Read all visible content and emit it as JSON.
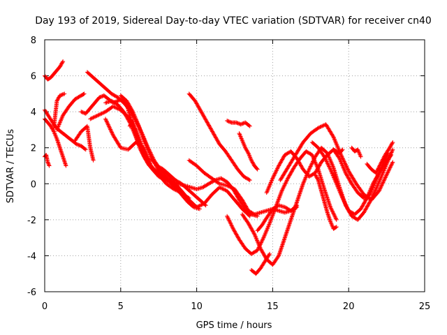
{
  "chart_data": {
    "type": "scatter",
    "title": "Day 193 of 2019, Sidereal Day-to-day VTEC variation (SDTVAR) for receiver cn40",
    "xlabel": "GPS time / hours",
    "ylabel": "SDTVAR / TECUs",
    "xlim": [
      0,
      25
    ],
    "ylim": [
      -6,
      8
    ],
    "xticks": [
      0,
      5,
      10,
      15,
      20,
      25
    ],
    "yticks": [
      -6,
      -4,
      -2,
      0,
      2,
      4,
      6,
      8
    ],
    "grid": true,
    "marker": "+",
    "color": "#ff0000",
    "series": [
      {
        "x": [
          0.0,
          0.2,
          0.4,
          0.6,
          0.8,
          1.0,
          1.2
        ],
        "y": [
          6.0,
          5.8,
          5.9,
          6.1,
          6.3,
          6.5,
          6.8
        ]
      },
      {
        "x": [
          0.0,
          0.3,
          0.6,
          0.9,
          1.2,
          1.5,
          1.8,
          2.1,
          2.4,
          2.7
        ],
        "y": [
          4.1,
          3.7,
          3.3,
          3.0,
          2.8,
          2.6,
          2.4,
          2.2,
          2.1,
          1.9
        ]
      },
      {
        "x": [
          0.0,
          0.2,
          0.4,
          0.6,
          0.8,
          1.0,
          1.2,
          1.4
        ],
        "y": [
          3.6,
          3.4,
          3.2,
          2.9,
          2.5,
          2.0,
          1.5,
          1.0
        ]
      },
      {
        "x": [
          0.0,
          0.1,
          0.2,
          0.3
        ],
        "y": [
          1.5,
          1.6,
          1.2,
          1.0
        ]
      },
      {
        "x": [
          0.8,
          1.2,
          1.6,
          2.0,
          2.4,
          2.6
        ],
        "y": [
          3.0,
          3.8,
          4.3,
          4.7,
          4.9,
          5.0
        ]
      },
      {
        "x": [
          0.6,
          0.8,
          1.0,
          1.3
        ],
        "y": [
          3.1,
          4.6,
          4.9,
          5.0
        ]
      },
      {
        "x": [
          2.0,
          2.4,
          2.8,
          3.0,
          3.2
        ],
        "y": [
          2.4,
          2.9,
          3.2,
          2.0,
          1.3
        ]
      },
      {
        "x": [
          2.4,
          2.7,
          3.0,
          3.3,
          3.6,
          3.9,
          4.2,
          4.5,
          4.8,
          5.1,
          5.4,
          5.7,
          6.0,
          6.3,
          6.6,
          6.9,
          7.2,
          7.5,
          7.8,
          8.1,
          8.4,
          8.7,
          9.0,
          9.3,
          9.5
        ],
        "y": [
          4.0,
          3.9,
          4.2,
          4.5,
          4.8,
          4.9,
          4.7,
          4.5,
          4.6,
          4.7,
          4.4,
          3.5,
          2.6,
          1.9,
          1.4,
          1.0,
          0.8,
          0.6,
          0.4,
          0.2,
          0.0,
          -0.3,
          -0.5,
          -0.7,
          -0.8
        ]
      },
      {
        "x": [
          2.8,
          3.2,
          3.6,
          4.0,
          4.4,
          4.8,
          5.2,
          5.6,
          6.0,
          6.4,
          6.8,
          7.2,
          7.6,
          8.0,
          8.4,
          8.8,
          9.2
        ],
        "y": [
          6.2,
          5.9,
          5.6,
          5.3,
          5.0,
          4.8,
          4.5,
          4.1,
          3.5,
          2.8,
          2.0,
          1.3,
          0.8,
          0.5,
          0.2,
          -0.2,
          -0.6
        ]
      },
      {
        "x": [
          3.0,
          3.5,
          4.0,
          4.5,
          5.0,
          5.5,
          6.0,
          6.5,
          7.0,
          7.5,
          8.0,
          8.5,
          9.0,
          9.5,
          10.0,
          10.5,
          11.0,
          11.5,
          12.0,
          12.5,
          13.0,
          13.5
        ],
        "y": [
          3.6,
          3.8,
          4.0,
          4.3,
          4.1,
          3.7,
          3.0,
          1.9,
          0.9,
          0.4,
          0.2,
          0.0,
          -0.4,
          -0.9,
          -1.3,
          -1.1,
          -0.6,
          -0.2,
          -0.4,
          -0.9,
          -1.4,
          -1.8
        ]
      },
      {
        "x": [
          4.0,
          4.5,
          5.0,
          5.5,
          6.0,
          6.5,
          7.0,
          7.5,
          8.0,
          8.5,
          9.0
        ],
        "y": [
          3.6,
          2.7,
          2.0,
          1.9,
          2.3,
          2.0,
          1.0,
          0.5,
          0.0,
          -0.3,
          -0.5
        ]
      },
      {
        "x": [
          4.0,
          4.4,
          4.8,
          5.2,
          5.6,
          6.0,
          6.4,
          6.8,
          7.2,
          7.6,
          8.0,
          8.4,
          8.8,
          9.2,
          9.6,
          10.0,
          10.4,
          10.8,
          11.2,
          11.6,
          12.0,
          12.4,
          12.8,
          13.2,
          13.6,
          14.0
        ],
        "y": [
          4.5,
          4.6,
          4.4,
          4.0,
          3.4,
          2.6,
          1.8,
          1.1,
          0.7,
          0.4,
          0.2,
          0.1,
          0.0,
          -0.1,
          -0.2,
          -0.3,
          -0.2,
          0.0,
          0.2,
          0.3,
          0.1,
          -0.3,
          -0.9,
          -1.4,
          -1.7,
          -1.8
        ]
      },
      {
        "x": [
          5.0,
          5.4,
          5.8,
          6.2,
          6.6,
          7.0,
          7.4,
          7.8,
          8.2,
          8.6,
          9.0,
          9.4,
          9.8,
          10.2
        ],
        "y": [
          4.9,
          4.6,
          4.0,
          3.2,
          2.3,
          1.5,
          0.9,
          0.5,
          0.1,
          -0.2,
          -0.6,
          -1.0,
          -1.3,
          -1.4
        ]
      },
      {
        "x": [
          5.6,
          5.8,
          6.0,
          6.2
        ],
        "y": [
          3.2,
          3.5,
          2.8,
          2.3
        ]
      },
      {
        "x": [
          7.0,
          7.4,
          7.8,
          8.2,
          8.6,
          9.0,
          9.4,
          9.8,
          10.2,
          10.6
        ],
        "y": [
          1.4,
          1.0,
          0.8,
          0.5,
          0.2,
          0.0,
          -0.3,
          -0.6,
          -0.9,
          -1.2
        ]
      },
      {
        "x": [
          9.5,
          9.9,
          10.3,
          10.7,
          11.1,
          11.5,
          11.9,
          12.3,
          12.7,
          13.1,
          13.5
        ],
        "y": [
          5.0,
          4.6,
          4.0,
          3.4,
          2.8,
          2.2,
          1.8,
          1.3,
          0.8,
          0.4,
          0.2
        ]
      },
      {
        "x": [
          9.5,
          10.0,
          10.5,
          11.0,
          11.5,
          12.0,
          12.5,
          13.0,
          13.4,
          13.8,
          14.2,
          14.6,
          15.0,
          15.4,
          15.8,
          16.2,
          16.6
        ],
        "y": [
          1.3,
          1.0,
          0.6,
          0.3,
          0.0,
          -0.1,
          -0.3,
          -0.9,
          -1.5,
          -1.7,
          -1.6,
          -1.5,
          -1.4,
          -1.5,
          -1.6,
          -1.5,
          -1.2
        ]
      },
      {
        "x": [
          12.0,
          12.3,
          12.6,
          12.9,
          13.2,
          13.5
        ],
        "y": [
          3.5,
          3.4,
          3.4,
          3.3,
          3.4,
          3.2
        ]
      },
      {
        "x": [
          12.8,
          13.0,
          13.2,
          13.4,
          13.6,
          13.8,
          14.0
        ],
        "y": [
          2.8,
          2.4,
          2.0,
          1.7,
          1.3,
          1.0,
          0.8
        ]
      },
      {
        "x": [
          12.0,
          12.4,
          12.8,
          13.2,
          13.6,
          14.0,
          14.4,
          14.8,
          15.2,
          15.6,
          16.0,
          16.4,
          16.8,
          17.2,
          17.6,
          18.0,
          18.4,
          18.8,
          19.2
        ],
        "y": [
          -1.8,
          -2.5,
          -3.1,
          -3.6,
          -3.9,
          -3.7,
          -3.0,
          -2.2,
          -1.3,
          -0.4,
          0.3,
          0.9,
          1.4,
          1.8,
          1.6,
          0.8,
          -0.3,
          -1.3,
          -2.0
        ]
      },
      {
        "x": [
          13.0,
          13.4,
          13.8,
          14.2,
          14.6,
          15.0,
          15.4,
          15.8,
          16.2,
          16.6,
          17.0,
          17.4,
          17.8,
          18.2,
          18.6,
          19.0,
          19.4,
          19.8,
          20.2,
          20.6,
          21.0,
          21.4,
          21.8,
          22.2,
          22.6,
          22.9
        ],
        "y": [
          -1.7,
          -2.2,
          -2.8,
          -3.6,
          -4.2,
          -4.5,
          -4.0,
          -3.0,
          -2.0,
          -1.0,
          0.0,
          0.8,
          1.5,
          2.0,
          1.7,
          0.9,
          -0.2,
          -1.2,
          -1.8,
          -2.0,
          -1.6,
          -1.0,
          -0.3,
          0.5,
          1.3,
          1.9
        ]
      },
      {
        "x": [
          13.6,
          13.9,
          14.2,
          14.5,
          14.8
        ],
        "y": [
          -4.8,
          -5.0,
          -4.7,
          -4.3,
          -3.9
        ]
      },
      {
        "x": [
          14.0,
          14.3,
          14.6,
          15.0,
          15.4,
          15.8,
          16.2,
          16.6
        ],
        "y": [
          -2.6,
          -2.3,
          -1.9,
          -1.4,
          -1.2,
          -1.3,
          -1.5,
          -1.3
        ]
      },
      {
        "x": [
          14.6,
          15.0,
          15.4,
          15.8,
          16.2,
          16.6,
          17.0,
          17.4,
          17.8,
          18.2,
          18.6,
          19.0,
          19.4,
          19.8,
          20.2,
          20.6,
          21.0,
          21.4,
          21.8,
          22.2,
          22.6
        ],
        "y": [
          -0.5,
          0.3,
          1.0,
          1.6,
          1.8,
          1.4,
          0.8,
          0.4,
          0.6,
          1.2,
          1.6,
          1.9,
          1.4,
          0.6,
          0.0,
          -0.5,
          -0.8,
          -0.6,
          0.2,
          1.0,
          1.7
        ]
      },
      {
        "x": [
          15.5,
          16.0,
          16.5,
          17.0,
          17.5,
          18.0,
          18.5,
          19.0,
          19.5,
          20.0,
          20.5,
          21.0,
          21.5,
          22.0,
          22.5,
          22.9
        ],
        "y": [
          0.2,
          0.9,
          1.6,
          2.3,
          2.8,
          3.1,
          3.3,
          2.6,
          1.6,
          0.7,
          0.0,
          -0.6,
          -0.9,
          -0.4,
          0.5,
          1.2
        ]
      },
      {
        "x": [
          17.6,
          18.0,
          18.4,
          18.8,
          19.2,
          19.6,
          20.0,
          20.4,
          20.8,
          21.2,
          21.6,
          22.0,
          22.4,
          22.8
        ],
        "y": [
          2.3,
          2.0,
          1.5,
          0.8,
          0.0,
          -0.8,
          -1.5,
          -1.7,
          -1.4,
          -0.8,
          0.0,
          0.6,
          1.1,
          1.6
        ]
      },
      {
        "x": [
          17.8,
          18.0,
          18.2,
          18.4,
          18.6,
          18.8,
          19.0,
          19.2
        ],
        "y": [
          0.5,
          0.2,
          -0.4,
          -1.0,
          -1.6,
          -2.1,
          -2.5,
          -2.4
        ]
      },
      {
        "x": [
          19.0,
          19.2,
          19.4,
          19.6
        ],
        "y": [
          1.9,
          1.8,
          1.7,
          1.9
        ]
      },
      {
        "x": [
          20.2,
          20.4,
          20.6,
          20.8
        ],
        "y": [
          2.0,
          1.8,
          1.9,
          1.5
        ]
      },
      {
        "x": [
          21.2,
          21.5,
          21.8,
          22.1,
          22.4,
          22.7,
          22.9
        ],
        "y": [
          1.1,
          0.8,
          0.6,
          1.1,
          1.6,
          2.0,
          2.3
        ]
      }
    ]
  }
}
